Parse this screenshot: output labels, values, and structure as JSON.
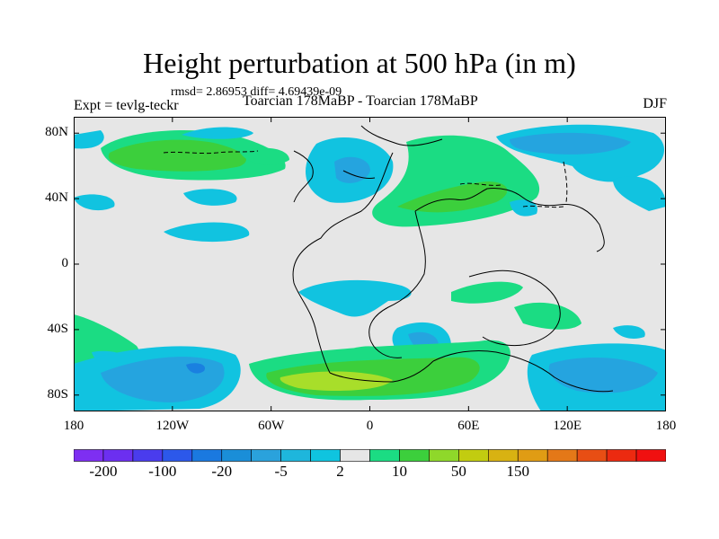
{
  "title": "Height perturbation at 500 hPa (in m)",
  "stats_text": "rmsd= 2.86953 diff= 4.69439e-09",
  "expt_label": "Expt = tevlg-teckr",
  "subtitle": "Toarcian 178MaBP - Toarcian 178MaBP",
  "season": "DJF",
  "map": {
    "lon_range": [
      -180,
      180
    ],
    "lat_range": [
      -90,
      90
    ],
    "lat_ticks": [
      {
        "value": 80,
        "label": "80N"
      },
      {
        "value": 40,
        "label": "40N"
      },
      {
        "value": 0,
        "label": "0"
      },
      {
        "value": -40,
        "label": "40S"
      },
      {
        "value": -80,
        "label": "80S"
      }
    ],
    "lon_ticks": [
      {
        "value": -180,
        "label": "180"
      },
      {
        "value": -120,
        "label": "120W"
      },
      {
        "value": -60,
        "label": "60W"
      },
      {
        "value": 0,
        "label": "0"
      },
      {
        "value": 60,
        "label": "60E"
      },
      {
        "value": 120,
        "label": "120E"
      },
      {
        "value": 180,
        "label": "180"
      }
    ]
  },
  "colorbar": {
    "colors": [
      "#7e2ff2",
      "#6c2ff0",
      "#4a3ced",
      "#2c58ea",
      "#1a79e0",
      "#1a8ed8",
      "#2aa2dc",
      "#1eb6dc",
      "#0fc4df",
      "#e6e6e6",
      "#1bdc83",
      "#3ccf3c",
      "#8fd82a",
      "#c2cc10",
      "#d8b212",
      "#e09c14",
      "#e47818",
      "#e84e14",
      "#ec2a10",
      "#f01010"
    ],
    "labels": [
      {
        "index": 1,
        "text": "-200"
      },
      {
        "index": 3,
        "text": "-100"
      },
      {
        "index": 5,
        "text": "-20"
      },
      {
        "index": 7,
        "text": "-5"
      },
      {
        "index": 9,
        "text": "2"
      },
      {
        "index": 11,
        "text": "10"
      },
      {
        "index": 13,
        "text": "50"
      },
      {
        "index": 15,
        "text": "150"
      }
    ]
  },
  "legend_colors": {
    "background": "#e6e6e6",
    "light_green": "#1bdc83",
    "green": "#3ccf3c",
    "yellow_green": "#a8de2a",
    "light_blue": "#11c3e0",
    "mid_blue": "#25a4df",
    "blue": "#1a80e0"
  }
}
